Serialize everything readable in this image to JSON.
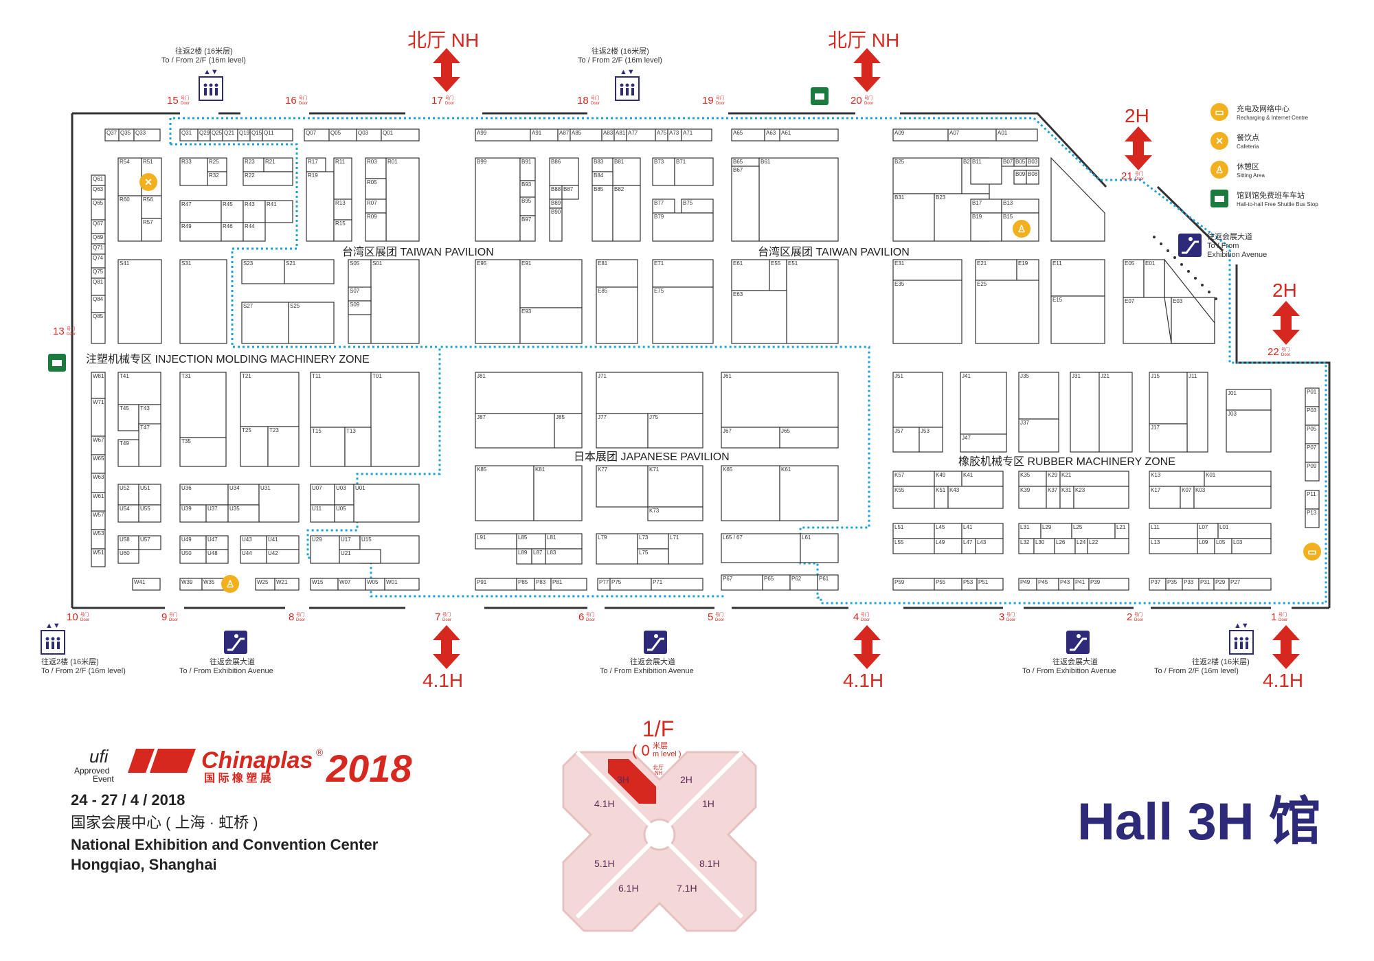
{
  "north_hall": "北厅 NH",
  "hall_4_1": "4.1H",
  "hall_2h": "2H",
  "lift_label": {
    "cn": "往返2楼 (16米层)",
    "en": "To / From 2/F (16m level)"
  },
  "escalator_label": {
    "cn": "往返会展大道",
    "en": "To / From Exhibition Avenue"
  },
  "escalator_label_right": {
    "cn": "往返会展大道",
    "en1": "To / From",
    "en2": "Exhibition Avenue"
  },
  "door_word": {
    "cn": "号门",
    "en": "Door"
  },
  "doors": [
    "1",
    "2",
    "3",
    "4",
    "5",
    "6",
    "7",
    "8",
    "9",
    "10",
    "13",
    "15",
    "16",
    "17",
    "18",
    "19",
    "20",
    "21",
    "22"
  ],
  "zones": {
    "taiwan": "台湾区展团 TAIWAN PAVILION",
    "injection": "注塑机械专区 INJECTION MOLDING MACHINERY ZONE",
    "japan": "日本展团   JAPANESE PAVILION",
    "rubber": "橡胶机械专区 RUBBER MACHINERY ZONE"
  },
  "legend": [
    {
      "cn": "充电及网络中心",
      "en": "Recharging & Internet Centre",
      "icon": "recharge-icon",
      "color": "#f2b01e"
    },
    {
      "cn": "餐饮点",
      "en": "Cafeteria",
      "icon": "cafeteria-icon",
      "color": "#f2b01e"
    },
    {
      "cn": "休憩区",
      "en": "Sitting Area",
      "icon": "sitting-icon",
      "color": "#f2b01e"
    },
    {
      "cn": "馆到馆免费班车车站",
      "en": "Hall-to-hall Free Shuttle Bus Stop",
      "icon": "shuttle-icon",
      "color": "#1b7a3e"
    }
  ],
  "event": {
    "ufi1": "ufi",
    "ufi2": "Approved",
    "ufi3": "Event",
    "brand": "Chinaplas",
    "reg": "®",
    "brand_cn": "国 际 橡 塑 展",
    "year": "2018",
    "dates": "24 - 27 / 4 / 2018",
    "venue_cn": "国家会展中心 ( 上海 · 虹桥 )",
    "venue_en1": "National Exhibition and Convention Center",
    "venue_en2": "Hongqiao, Shanghai"
  },
  "hall_title": "Hall 3H 馆",
  "mini_map": {
    "floor": "1/F",
    "level_num": "( 0",
    "level_cn": "米层",
    "level_en": "m level )",
    "nh_cn": "北厅",
    "nh_en": "NH",
    "halls": [
      "3H",
      "2H",
      "4.1H",
      "1H",
      "5.1H",
      "8.1H",
      "6.1H",
      "7.1H"
    ]
  },
  "booths": [
    "Q37",
    "Q35",
    "Q33",
    "Q31",
    "Q29",
    "Q25",
    "Q21",
    "Q19",
    "Q15",
    "Q11",
    "Q07",
    "Q05",
    "Q03",
    "Q01",
    "R54",
    "R51",
    "R60",
    "R56",
    "R57",
    "R33",
    "R25",
    "R32",
    "R23",
    "R21",
    "R22",
    "R47",
    "R45",
    "R43",
    "R41",
    "R49",
    "R46",
    "R44",
    "R17",
    "R19",
    "R11",
    "R13",
    "R15",
    "R03",
    "R01",
    "R05",
    "R07",
    "R09",
    "Q61",
    "Q63",
    "Q65",
    "Q67",
    "Q69",
    "Q71",
    "Q74",
    "Q75",
    "Q81",
    "Q84",
    "Q85",
    "S41",
    "S31",
    "S23",
    "S21",
    "S27",
    "S25",
    "S05",
    "S01",
    "S07",
    "S09",
    "A99",
    "A91",
    "A87",
    "A85",
    "A83",
    "A81",
    "A77",
    "A75",
    "A73",
    "A71",
    "A65",
    "A63",
    "A61",
    "A09",
    "A07",
    "A01",
    "B99",
    "B91",
    "B93",
    "B95",
    "B97",
    "B86",
    "B88",
    "B87",
    "B89",
    "B90",
    "B83",
    "B81",
    "B84",
    "B85",
    "B82",
    "B73",
    "B71",
    "B77",
    "B75",
    "B79",
    "B65",
    "B61",
    "B67",
    "B25",
    "B21",
    "B31",
    "B23",
    "B11",
    "B07",
    "B05",
    "B03",
    "B09",
    "B08",
    "B17",
    "B13",
    "B19",
    "B15",
    "B01",
    "E95",
    "E91",
    "E93",
    "E81",
    "E85",
    "E71",
    "E75",
    "E61",
    "E55",
    "E51",
    "E63",
    "E31",
    "E35",
    "E21",
    "E19",
    "E25",
    "E11",
    "E15",
    "E05",
    "E01",
    "E07",
    "E03",
    "W81",
    "W71",
    "W67",
    "W65",
    "W63",
    "W61",
    "W57",
    "W53",
    "W51",
    "W41",
    "T41",
    "T45",
    "T43",
    "T47",
    "T49",
    "T31",
    "T35",
    "T21",
    "T25",
    "T23",
    "T11",
    "T01",
    "T15",
    "T13",
    "U52",
    "U51",
    "U54",
    "U55",
    "U36",
    "U34",
    "U31",
    "U39",
    "U37",
    "U35",
    "U07",
    "U03",
    "U01",
    "U11",
    "U05",
    "U58",
    "U57",
    "U60",
    "U49",
    "U47",
    "U50",
    "U48",
    "U43",
    "U41",
    "U44",
    "U42",
    "U29",
    "U17",
    "U15",
    "U21",
    "W39",
    "W35",
    "W25",
    "W21",
    "W15",
    "W07",
    "W05",
    "W01",
    "J81",
    "J87",
    "J85",
    "J71",
    "J77",
    "J75",
    "J61",
    "J67",
    "J65",
    "J51",
    "J57",
    "J53",
    "J41",
    "J47",
    "J35",
    "J37",
    "J31",
    "J21",
    "J33",
    "J15",
    "J11",
    "J17",
    "J13",
    "J01",
    "J03",
    "K85",
    "K81",
    "K77",
    "K71",
    "K73",
    "K65",
    "K61",
    "K57",
    "K49",
    "K41",
    "K55",
    "K51",
    "K43",
    "K35",
    "K29",
    "K21",
    "K39",
    "K37",
    "K31",
    "K23",
    "K13",
    "K01",
    "K17",
    "K07",
    "K03",
    "L91",
    "L85",
    "L81",
    "L89",
    "L87",
    "L83",
    "L79",
    "L73",
    "L71",
    "L75",
    "L65 / 67",
    "L61",
    "L51",
    "L45",
    "L41",
    "L55",
    "L49",
    "L47",
    "L43",
    "L31",
    "L29",
    "L25",
    "L21",
    "L32",
    "L30",
    "L26",
    "L24",
    "L22",
    "L11",
    "L07",
    "L01",
    "L13",
    "L09",
    "L05",
    "L03",
    "P91",
    "P85",
    "P83",
    "P81",
    "P77",
    "P75",
    "P71",
    "P67",
    "P65",
    "P62",
    "P61",
    "P59",
    "P55",
    "P53",
    "P51",
    "P49",
    "P45",
    "P43",
    "P41",
    "P39",
    "P37",
    "P35",
    "P33",
    "P31",
    "P29",
    "P27",
    "P01",
    "P03",
    "P05",
    "P07",
    "P09",
    "P11",
    "P13"
  ]
}
